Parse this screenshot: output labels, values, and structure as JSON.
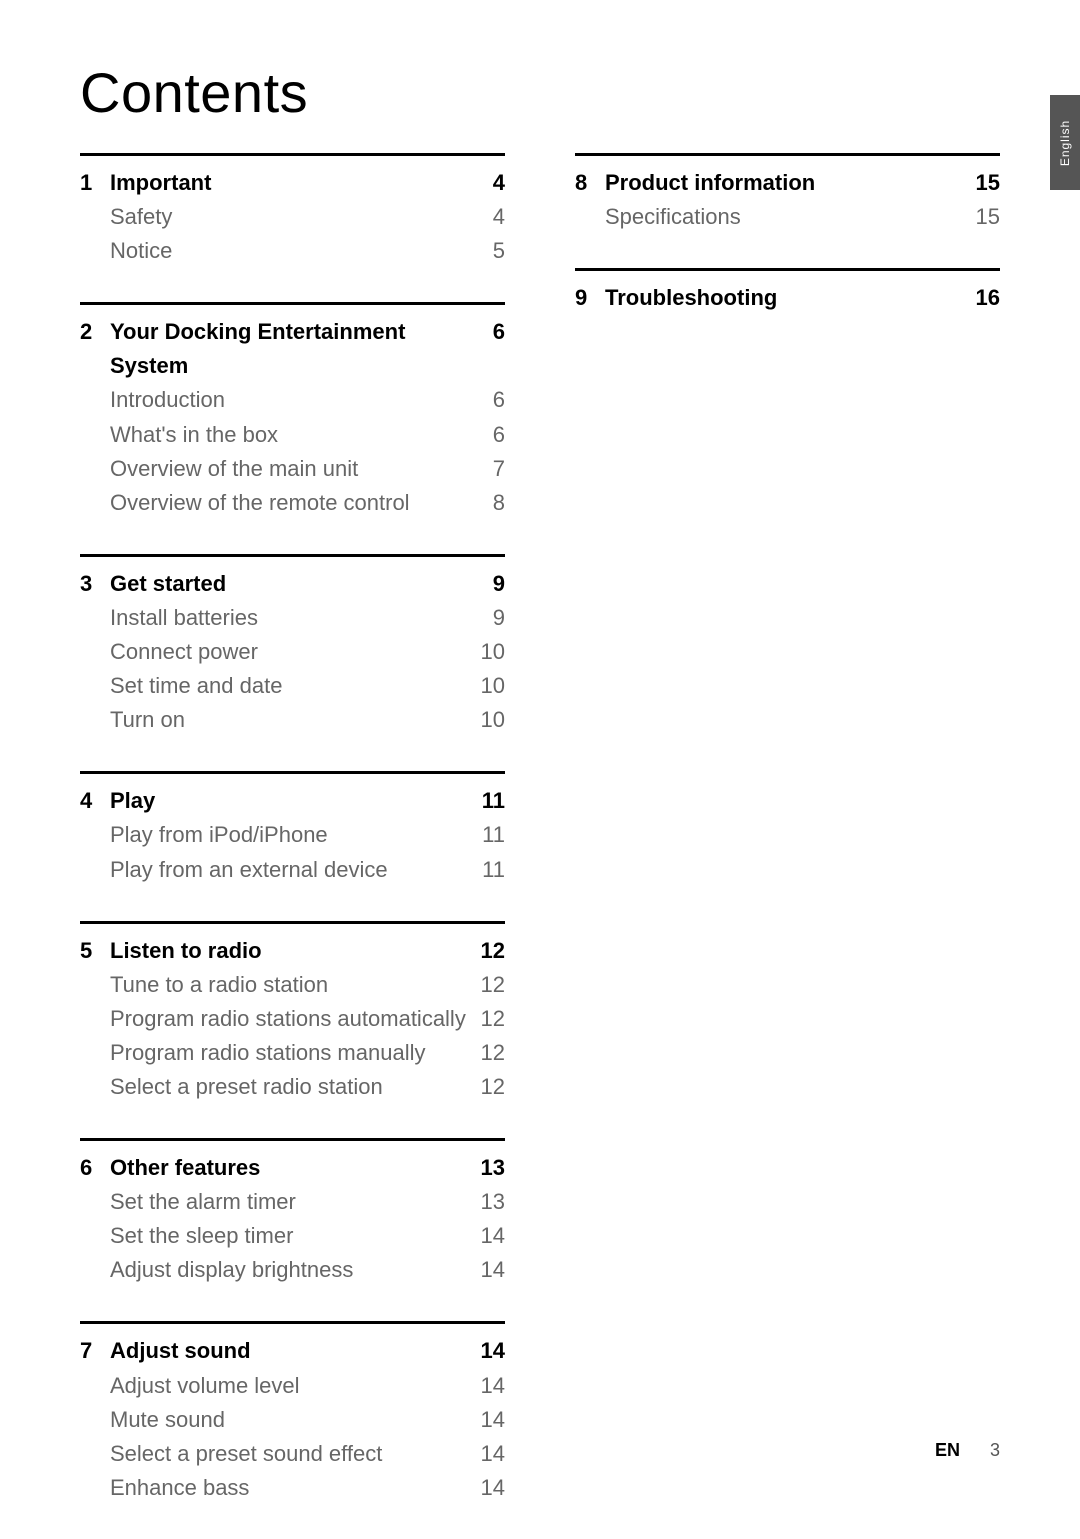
{
  "title": "Contents",
  "side_tab": "English",
  "footer": {
    "label": "EN",
    "page": "3"
  },
  "left_sections": [
    {
      "num": "1",
      "rows": [
        {
          "label": "Important",
          "page": "4",
          "bold": true
        },
        {
          "label": "Safety",
          "page": "4"
        },
        {
          "label": "Notice",
          "page": "5"
        }
      ]
    },
    {
      "num": "2",
      "rows": [
        {
          "label": "Your Docking Entertainment System",
          "page": "6",
          "bold": true
        },
        {
          "label": "Introduction",
          "page": "6"
        },
        {
          "label": "What's in the box",
          "page": "6"
        },
        {
          "label": "Overview of the main unit",
          "page": "7"
        },
        {
          "label": "Overview of the remote control",
          "page": "8"
        }
      ]
    },
    {
      "num": "3",
      "rows": [
        {
          "label": "Get started",
          "page": "9",
          "bold": true
        },
        {
          "label": "Install batteries",
          "page": "9"
        },
        {
          "label": "Connect power",
          "page": "10"
        },
        {
          "label": "Set time and date",
          "page": "10"
        },
        {
          "label": "Turn on",
          "page": "10"
        }
      ]
    },
    {
      "num": "4",
      "rows": [
        {
          "label": "Play",
          "page": "11",
          "bold": true
        },
        {
          "label": "Play from iPod/iPhone",
          "page": "11"
        },
        {
          "label": "Play from an external device",
          "page": "11"
        }
      ]
    },
    {
      "num": "5",
      "rows": [
        {
          "label": "Listen to radio",
          "page": "12",
          "bold": true
        },
        {
          "label": "Tune to a radio station",
          "page": "12"
        },
        {
          "label": "Program radio stations automatically",
          "page": "12"
        },
        {
          "label": "Program radio stations manually",
          "page": "12"
        },
        {
          "label": "Select a preset radio station",
          "page": "12"
        }
      ]
    },
    {
      "num": "6",
      "rows": [
        {
          "label": "Other features",
          "page": "13",
          "bold": true
        },
        {
          "label": "Set the alarm timer",
          "page": "13"
        },
        {
          "label": "Set the sleep timer",
          "page": "14"
        },
        {
          "label": "Adjust display brightness",
          "page": "14"
        }
      ]
    },
    {
      "num": "7",
      "rows": [
        {
          "label": "Adjust sound",
          "page": "14",
          "bold": true
        },
        {
          "label": "Adjust volume level",
          "page": "14"
        },
        {
          "label": "Mute sound",
          "page": "14"
        },
        {
          "label": "Select a preset sound effect",
          "page": "14"
        },
        {
          "label": "Enhance bass",
          "page": "14"
        }
      ]
    }
  ],
  "right_sections": [
    {
      "num": "8",
      "rows": [
        {
          "label": "Product information",
          "page": "15",
          "bold": true
        },
        {
          "label": "Specifications",
          "page": "15"
        }
      ]
    },
    {
      "num": "9",
      "rows": [
        {
          "label": "Troubleshooting",
          "page": "16",
          "bold": true
        }
      ]
    }
  ]
}
